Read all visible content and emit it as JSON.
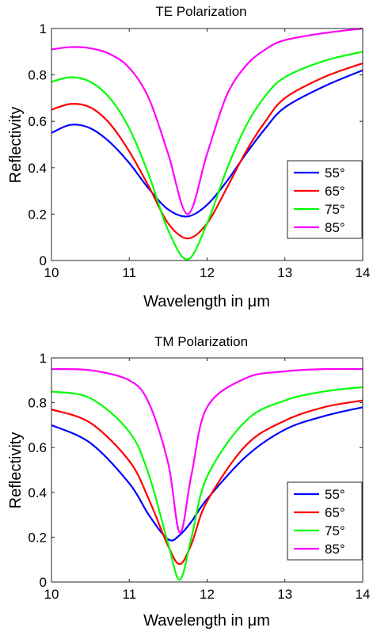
{
  "chart_data": [
    {
      "type": "line",
      "title": "TE Polarization",
      "xlabel": "Wavelength in μm",
      "ylabel": "Reflectivity",
      "xlim": [
        10,
        14
      ],
      "ylim": [
        0,
        1
      ],
      "xticks": [
        "10",
        "11",
        "12",
        "13",
        "14"
      ],
      "yticks": [
        "0",
        "0.2",
        "0.4",
        "0.6",
        "0.8",
        "1"
      ],
      "grid": false,
      "legend_position": "right-middle",
      "x": [
        10.0,
        10.25,
        10.5,
        10.75,
        11.0,
        11.25,
        11.5,
        11.75,
        12.0,
        12.25,
        12.5,
        12.75,
        13.0,
        13.5,
        14.0
      ],
      "series": [
        {
          "name": "55°",
          "color": "#0000ff",
          "values": [
            0.55,
            0.585,
            0.57,
            0.51,
            0.42,
            0.31,
            0.22,
            0.19,
            0.24,
            0.34,
            0.46,
            0.57,
            0.66,
            0.75,
            0.82
          ]
        },
        {
          "name": "65°",
          "color": "#ff0000",
          "values": [
            0.65,
            0.675,
            0.66,
            0.59,
            0.47,
            0.32,
            0.16,
            0.095,
            0.16,
            0.31,
            0.47,
            0.6,
            0.7,
            0.79,
            0.85
          ]
        },
        {
          "name": "75°",
          "color": "#00ff00",
          "values": [
            0.77,
            0.79,
            0.77,
            0.7,
            0.57,
            0.37,
            0.13,
            0.005,
            0.16,
            0.39,
            0.58,
            0.71,
            0.79,
            0.86,
            0.9
          ]
        },
        {
          "name": "85°",
          "color": "#ff00ff",
          "values": [
            0.91,
            0.92,
            0.915,
            0.89,
            0.83,
            0.7,
            0.46,
            0.2,
            0.46,
            0.71,
            0.84,
            0.91,
            0.95,
            0.98,
            1.0
          ]
        }
      ]
    },
    {
      "type": "line",
      "title": "TM Polarization",
      "xlabel": "Wavelength in μm",
      "ylabel": "Reflectivity",
      "xlim": [
        10,
        14
      ],
      "ylim": [
        0,
        1
      ],
      "xticks": [
        "10",
        "11",
        "12",
        "13",
        "14"
      ],
      "yticks": [
        "0",
        "0.2",
        "0.4",
        "0.6",
        "0.8",
        "1"
      ],
      "grid": false,
      "legend_position": "bottom-right",
      "x": [
        10.0,
        10.5,
        11.0,
        11.25,
        11.5,
        11.65,
        11.8,
        12.0,
        12.5,
        13.0,
        13.5,
        14.0
      ],
      "series": [
        {
          "name": "55°",
          "color": "#0000ff",
          "values": [
            0.7,
            0.62,
            0.44,
            0.3,
            0.19,
            0.21,
            0.27,
            0.37,
            0.56,
            0.68,
            0.74,
            0.78
          ]
        },
        {
          "name": "65°",
          "color": "#ff0000",
          "values": [
            0.77,
            0.71,
            0.54,
            0.37,
            0.16,
            0.08,
            0.17,
            0.36,
            0.61,
            0.72,
            0.78,
            0.81
          ]
        },
        {
          "name": "75°",
          "color": "#00ff00",
          "values": [
            0.85,
            0.82,
            0.67,
            0.48,
            0.17,
            0.01,
            0.2,
            0.47,
            0.72,
            0.81,
            0.85,
            0.87
          ]
        },
        {
          "name": "85°",
          "color": "#ff00ff",
          "values": [
            0.95,
            0.945,
            0.9,
            0.8,
            0.53,
            0.22,
            0.48,
            0.78,
            0.91,
            0.94,
            0.95,
            0.95
          ]
        }
      ]
    }
  ]
}
